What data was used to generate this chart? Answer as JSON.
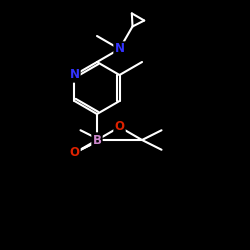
{
  "background": "#000000",
  "bond_color": "#ffffff",
  "bond_width": 1.5,
  "atom_colors": {
    "N": "#3333ff",
    "B": "#cc88cc",
    "O": "#dd2200",
    "C": "#ffffff"
  },
  "font_size_atom": 8.5,
  "fig_size": [
    2.5,
    2.5
  ],
  "dpi": 100,
  "xlim": [
    0,
    250
  ],
  "ylim": [
    0,
    250
  ]
}
